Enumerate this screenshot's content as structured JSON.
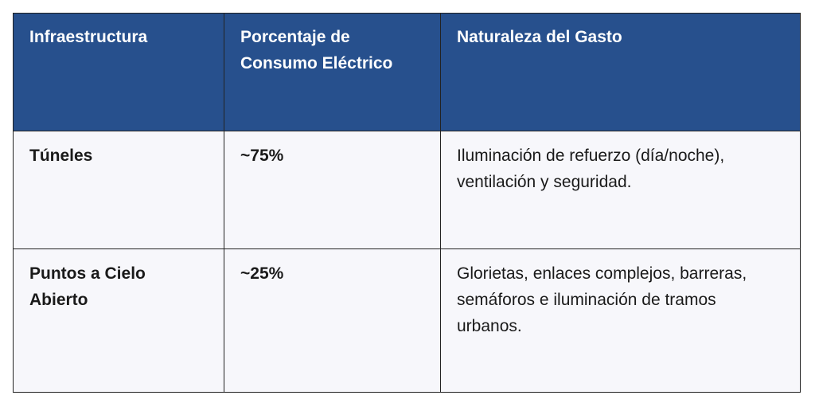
{
  "table": {
    "headers": [
      "Infraestructura",
      "Porcentaje de Consumo Eléctrico",
      "Naturaleza del Gasto"
    ],
    "rows": [
      {
        "infraestructura": "Túneles",
        "porcentaje": "~75%",
        "naturaleza": "Iluminación de refuerzo (día/noche), ventilación y seguridad."
      },
      {
        "infraestructura": "Puntos a Cielo Abierto",
        "porcentaje": "~25%",
        "naturaleza": "Glorietas, enlaces complejos, barreras, semáforos e iluminación de tramos urbanos."
      }
    ]
  },
  "colors": {
    "header_background": "#27508d",
    "header_text": "#ffffff",
    "cell_background": "#f7f7fb",
    "border": "#222222"
  }
}
